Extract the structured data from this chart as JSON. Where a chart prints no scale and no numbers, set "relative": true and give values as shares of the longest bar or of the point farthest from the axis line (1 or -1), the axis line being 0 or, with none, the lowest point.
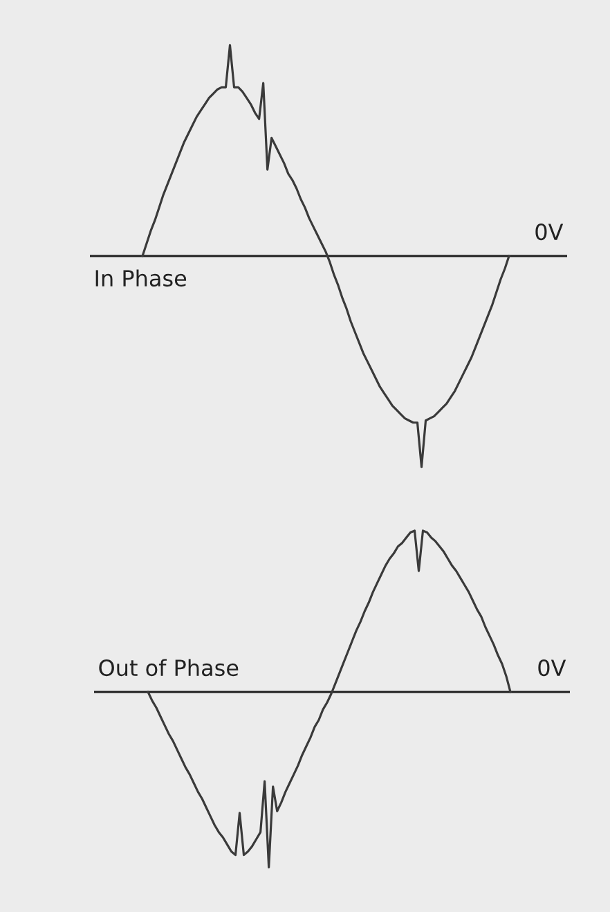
{
  "chart_data": [
    {
      "type": "line",
      "relative": true,
      "categories": [
        null,
        null,
        null,
        null,
        null,
        null,
        null,
        null,
        null,
        null,
        null,
        null,
        null,
        null,
        null,
        null,
        null,
        null,
        null,
        null,
        null,
        null,
        null,
        null,
        null,
        null,
        null,
        null,
        null,
        null,
        null,
        null,
        null,
        null,
        null,
        null,
        null,
        null,
        null,
        null,
        null,
        null,
        null,
        null,
        null,
        null,
        null,
        null,
        null,
        null,
        null,
        null,
        null,
        null,
        null,
        null,
        null,
        null,
        null,
        null,
        null,
        null,
        null,
        null,
        null,
        null,
        null,
        null,
        null,
        null,
        null,
        null,
        null,
        null,
        null,
        null,
        null,
        null,
        null,
        null,
        null,
        null,
        null,
        null,
        null,
        null,
        null,
        null,
        null
      ],
      "series": [
        {
          "color": "#3a3a3a",
          "values": [
            0,
            0.06,
            0.12,
            0.17,
            0.23,
            0.29,
            0.34,
            0.39,
            0.44,
            0.49,
            0.54,
            0.58,
            0.62,
            0.66,
            0.69,
            0.72,
            0.75,
            0.77,
            0.79,
            0.8,
            0.8,
            1.0,
            0.8,
            0.8,
            0.78,
            0.75,
            0.72,
            0.68,
            0.65,
            0.82,
            0.41,
            0.56,
            0.52,
            0.48,
            0.44,
            0.39,
            0.36,
            0.32,
            0.27,
            0.23,
            0.18,
            0.14,
            0.1,
            0.06,
            0.02,
            -0.03,
            -0.09,
            -0.14,
            -0.2,
            -0.25,
            -0.31,
            -0.36,
            -0.41,
            -0.46,
            -0.5,
            -0.54,
            -0.58,
            -0.62,
            -0.65,
            -0.68,
            -0.71,
            -0.73,
            -0.75,
            -0.77,
            -0.78,
            -0.79,
            -0.79,
            -1.0,
            -0.78,
            -0.77,
            -0.76,
            -0.74,
            -0.72,
            -0.7,
            -0.67,
            -0.64,
            -0.6,
            -0.56,
            -0.52,
            -0.48,
            -0.43,
            -0.38,
            -0.33,
            -0.28,
            -0.23,
            -0.17,
            -0.11,
            -0.06,
            0
          ]
        }
      ],
      "ref_lines": [
        {
          "axis": "y",
          "value": 0,
          "label": "0V",
          "color": "#1e1e1e"
        }
      ],
      "annotations": [
        "In Phase"
      ]
    },
    {
      "type": "line",
      "relative": true,
      "categories": [
        null,
        null,
        null,
        null,
        null,
        null,
        null,
        null,
        null,
        null,
        null,
        null,
        null,
        null,
        null,
        null,
        null,
        null,
        null,
        null,
        null,
        null,
        null,
        null,
        null,
        null,
        null,
        null,
        null,
        null,
        null,
        null,
        null,
        null,
        null,
        null,
        null,
        null,
        null,
        null,
        null,
        null,
        null,
        null,
        null,
        null,
        null,
        null,
        null,
        null,
        null,
        null,
        null,
        null,
        null,
        null,
        null,
        null,
        null,
        null,
        null,
        null,
        null,
        null,
        null,
        null,
        null,
        null,
        null,
        null,
        null,
        null,
        null,
        null,
        null,
        null,
        null,
        null,
        null,
        null,
        null,
        null,
        null,
        null,
        null,
        null,
        null,
        null
      ],
      "series": [
        {
          "color": "#3a3a3a",
          "values": [
            0,
            -0.05,
            -0.09,
            -0.14,
            -0.19,
            -0.24,
            -0.28,
            -0.33,
            -0.38,
            -0.43,
            -0.47,
            -0.52,
            -0.57,
            -0.61,
            -0.66,
            -0.71,
            -0.76,
            -0.8,
            -0.83,
            -0.87,
            -0.91,
            -0.93,
            -0.69,
            -0.93,
            -0.91,
            -0.88,
            -0.84,
            -0.8,
            -0.51,
            -1.0,
            -0.54,
            -0.68,
            -0.63,
            -0.57,
            -0.52,
            -0.47,
            -0.42,
            -0.36,
            -0.31,
            -0.26,
            -0.2,
            -0.16,
            -0.1,
            -0.06,
            -0.01,
            0.05,
            0.11,
            0.17,
            0.23,
            0.29,
            0.35,
            0.4,
            0.46,
            0.51,
            0.57,
            0.62,
            0.67,
            0.72,
            0.76,
            0.79,
            0.83,
            0.85,
            0.88,
            0.91,
            0.92,
            0.69,
            0.92,
            0.91,
            0.88,
            0.86,
            0.83,
            0.8,
            0.76,
            0.72,
            0.69,
            0.65,
            0.61,
            0.57,
            0.52,
            0.47,
            0.43,
            0.37,
            0.32,
            0.27,
            0.21,
            0.16,
            0.09,
            0
          ]
        }
      ],
      "ref_lines": [
        {
          "axis": "y",
          "value": 0,
          "label": "0V",
          "color": "#1e1e1e"
        }
      ],
      "annotations": [
        "Out of Phase"
      ]
    }
  ]
}
